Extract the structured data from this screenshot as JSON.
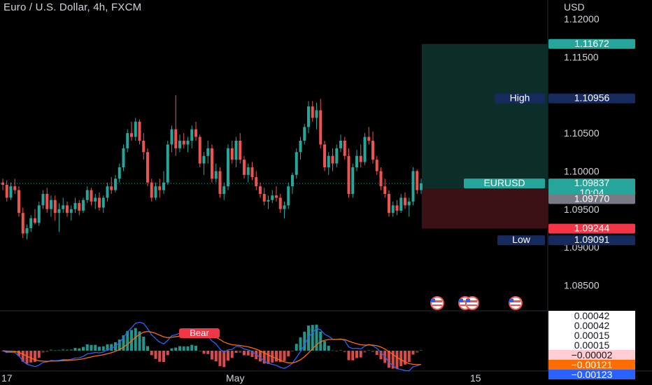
{
  "header": {
    "title": "Euro / U.S. Dollar, 4h, FXCM",
    "currency": "USD"
  },
  "colors": {
    "up": "#26a69a",
    "down": "#ef5350",
    "macd": "#2962ff",
    "signal": "#ff6d00",
    "target_zone": "#0b2f28",
    "stop_zone": "#3b1115",
    "label_blue": "#172a5e",
    "label_gray": "#787b86"
  },
  "chart_data": [
    {
      "type": "candlestick",
      "symbol": "EURUSD",
      "timeframe": "4h",
      "x_tick_labels": [
        "17",
        "May",
        "15"
      ],
      "y_ticks": [
        "1.12000",
        "1.11500",
        "1.10500",
        "1.10000",
        "1.09500",
        "1.09000",
        "1.08500"
      ],
      "ylim": [
        1.082,
        1.1225
      ],
      "last_price": 1.09837,
      "countdown": "10:04",
      "high": 1.10956,
      "low": 1.09091,
      "position": {
        "target": 1.11672,
        "entry": 1.0977,
        "stop": 1.09244
      },
      "price_labels": {
        "target": "1.11672",
        "high_tag": "High",
        "high": "1.10956",
        "symbol_tag": "EURUSD",
        "last": "1.09837",
        "countdown": "10:04",
        "entry": "1.09770",
        "stop": "1.09244",
        "low_tag": "Low",
        "low": "1.09091"
      },
      "ohlc": [
        [
          1.0985,
          1.099,
          1.0975,
          1.0982
        ],
        [
          1.0982,
          1.0988,
          1.096,
          1.0965
        ],
        [
          1.0965,
          1.0985,
          1.0962,
          1.098
        ],
        [
          1.098,
          1.099,
          1.097,
          1.0975
        ],
        [
          1.0975,
          1.098,
          1.094,
          1.0945
        ],
        [
          1.0945,
          1.0952,
          1.0912,
          1.0918
        ],
        [
          1.0918,
          1.093,
          1.091,
          1.0925
        ],
        [
          1.0925,
          1.0942,
          1.092,
          1.0938
        ],
        [
          1.0938,
          1.095,
          1.093,
          1.0932
        ],
        [
          1.0932,
          1.096,
          1.0928,
          1.0955
        ],
        [
          1.0955,
          1.0975,
          1.095,
          1.097
        ],
        [
          1.097,
          1.0978,
          1.0945,
          1.095
        ],
        [
          1.095,
          1.0968,
          1.094,
          1.0962
        ],
        [
          1.0962,
          1.0968,
          1.0935,
          1.0945
        ],
        [
          1.0945,
          1.0958,
          1.092,
          1.095
        ],
        [
          1.095,
          1.0965,
          1.0945,
          1.0955
        ],
        [
          1.0955,
          1.096,
          1.094,
          1.0945
        ],
        [
          1.0945,
          1.0955,
          1.0935,
          1.095
        ],
        [
          1.095,
          1.0965,
          1.0945,
          1.0958
        ],
        [
          1.0958,
          1.0962,
          1.0942,
          1.0948
        ],
        [
          1.0948,
          1.0965,
          1.0945,
          1.0962
        ],
        [
          1.0962,
          1.098,
          1.0958,
          1.0975
        ],
        [
          1.0975,
          1.0978,
          1.0955,
          1.096
        ],
        [
          1.096,
          1.097,
          1.095,
          1.0965
        ],
        [
          1.0965,
          1.0972,
          1.0948,
          1.0952
        ],
        [
          1.0952,
          1.0968,
          1.0945,
          1.0965
        ],
        [
          1.0965,
          1.0985,
          1.096,
          1.098
        ],
        [
          1.098,
          1.0992,
          1.097,
          1.0975
        ],
        [
          1.0975,
          1.0995,
          1.0972,
          1.099
        ],
        [
          1.099,
          1.101,
          1.0985,
          1.1005
        ],
        [
          1.1005,
          1.1035,
          1.1,
          1.103
        ],
        [
          1.103,
          1.1055,
          1.1025,
          1.105
        ],
        [
          1.105,
          1.1065,
          1.104,
          1.1045
        ],
        [
          1.1045,
          1.107,
          1.104,
          1.1065
        ],
        [
          1.1065,
          1.1068,
          1.1035,
          1.104
        ],
        [
          1.104,
          1.105,
          1.1015,
          1.1025
        ],
        [
          1.1025,
          1.103,
          1.098,
          1.0985
        ],
        [
          1.0985,
          1.099,
          1.096,
          1.0965
        ],
        [
          1.0965,
          1.0985,
          1.0962,
          1.098
        ],
        [
          1.098,
          1.099,
          1.0965,
          1.0975
        ],
        [
          1.0975,
          1.1,
          1.097,
          1.0985
        ],
        [
          1.0985,
          1.104,
          1.0982,
          1.1035
        ],
        [
          1.1035,
          1.106,
          1.1025,
          1.1055
        ],
        [
          1.1055,
          1.11,
          1.102,
          1.103
        ],
        [
          1.103,
          1.1048,
          1.1025,
          1.104
        ],
        [
          1.104,
          1.105,
          1.103,
          1.1035
        ],
        [
          1.1035,
          1.1045,
          1.1025,
          1.104
        ],
        [
          1.104,
          1.106,
          1.103,
          1.1055
        ],
        [
          1.1055,
          1.1065,
          1.104,
          1.1045
        ],
        [
          1.1045,
          1.1048,
          1.1005,
          1.101
        ],
        [
          1.101,
          1.1025,
          1.0995,
          1.102
        ],
        [
          1.102,
          1.104,
          1.101,
          1.103
        ],
        [
          1.103,
          1.1035,
          1.0985,
          1.099
        ],
        [
          1.099,
          1.101,
          1.0985,
          1.1
        ],
        [
          1.1,
          1.1005,
          1.0965,
          1.097
        ],
        [
          1.097,
          1.0985,
          1.0962,
          1.098
        ],
        [
          1.098,
          1.1035,
          1.0975,
          1.103
        ],
        [
          1.103,
          1.104,
          1.101,
          1.1015
        ],
        [
          1.1015,
          1.1045,
          1.1005,
          1.104
        ],
        [
          1.104,
          1.105,
          1.101,
          1.1015
        ],
        [
          1.1015,
          1.102,
          1.099,
          1.0995
        ],
        [
          1.0995,
          1.101,
          1.0985,
          1.1005
        ],
        [
          1.1005,
          1.1012,
          1.0988,
          1.0992
        ],
        [
          1.0992,
          1.1,
          1.0975,
          1.098
        ],
        [
          1.098,
          1.0985,
          1.0965,
          1.097
        ],
        [
          1.097,
          1.0978,
          1.0955,
          1.096
        ],
        [
          1.096,
          1.0968,
          1.095,
          1.0962
        ],
        [
          1.0962,
          1.0975,
          1.0958,
          1.0968
        ],
        [
          1.0968,
          1.098,
          1.096,
          1.0965
        ],
        [
          1.0965,
          1.097,
          1.0945,
          1.095
        ],
        [
          1.095,
          1.096,
          1.0938,
          1.0955
        ],
        [
          1.0955,
          1.0985,
          1.095,
          1.098
        ],
        [
          1.098,
          1.0998,
          1.097,
          1.0995
        ],
        [
          1.0995,
          1.103,
          1.099,
          1.1025
        ],
        [
          1.1025,
          1.1045,
          1.1015,
          1.104
        ],
        [
          1.104,
          1.1062,
          1.1035,
          1.1058
        ],
        [
          1.1058,
          1.1092,
          1.105,
          1.1085
        ],
        [
          1.1085,
          1.1092,
          1.1065,
          1.107
        ],
        [
          1.107,
          1.109,
          1.1055,
          1.108
        ],
        [
          1.108,
          1.1095,
          1.103,
          1.1035
        ],
        [
          1.1035,
          1.104,
          1.1,
          1.1005
        ],
        [
          1.1005,
          1.1025,
          1.0995,
          1.102
        ],
        [
          1.102,
          1.103,
          1.1,
          1.101
        ],
        [
          1.101,
          1.1035,
          1.1005,
          1.103
        ],
        [
          1.103,
          1.1048,
          1.1025,
          1.104
        ],
        [
          1.104,
          1.1045,
          1.1015,
          1.102
        ],
        [
          1.102,
          1.103,
          1.0965,
          1.097
        ],
        [
          1.097,
          1.101,
          1.0965,
          1.1005
        ],
        [
          1.1005,
          1.1028,
          1.1,
          1.102
        ],
        [
          1.102,
          1.1035,
          1.1005,
          1.1012
        ],
        [
          1.1012,
          1.105,
          1.1008,
          1.1045
        ],
        [
          1.1045,
          1.1058,
          1.1035,
          1.104
        ],
        [
          1.104,
          1.1052,
          1.101,
          1.1015
        ],
        [
          1.1015,
          1.102,
          1.0995,
          1.1
        ],
        [
          1.1,
          1.1005,
          1.0975,
          1.098
        ],
        [
          1.098,
          1.099,
          1.0965,
          1.097
        ],
        [
          1.097,
          1.0975,
          1.094,
          1.0945
        ],
        [
          1.0945,
          1.096,
          1.094,
          1.0955
        ],
        [
          1.0955,
          1.0962,
          1.0942,
          1.0948
        ],
        [
          1.0948,
          1.097,
          1.0945,
          1.0965
        ],
        [
          1.0965,
          1.0972,
          1.095,
          1.0955
        ],
        [
          1.0955,
          1.0965,
          1.094,
          1.096
        ],
        [
          1.096,
          1.1005,
          1.0955,
          1.1
        ],
        [
          1.1,
          1.1002,
          1.097,
          1.0975
        ],
        [
          1.0975,
          1.099,
          1.097,
          1.0984
        ]
      ]
    },
    {
      "type": "macd",
      "label": "Bear",
      "value_labels": [
        "0.00042",
        "0.00042",
        "0.00015",
        "0.00015",
        "−0.00002",
        "−0.00121",
        "−0.00123"
      ]
    }
  ]
}
